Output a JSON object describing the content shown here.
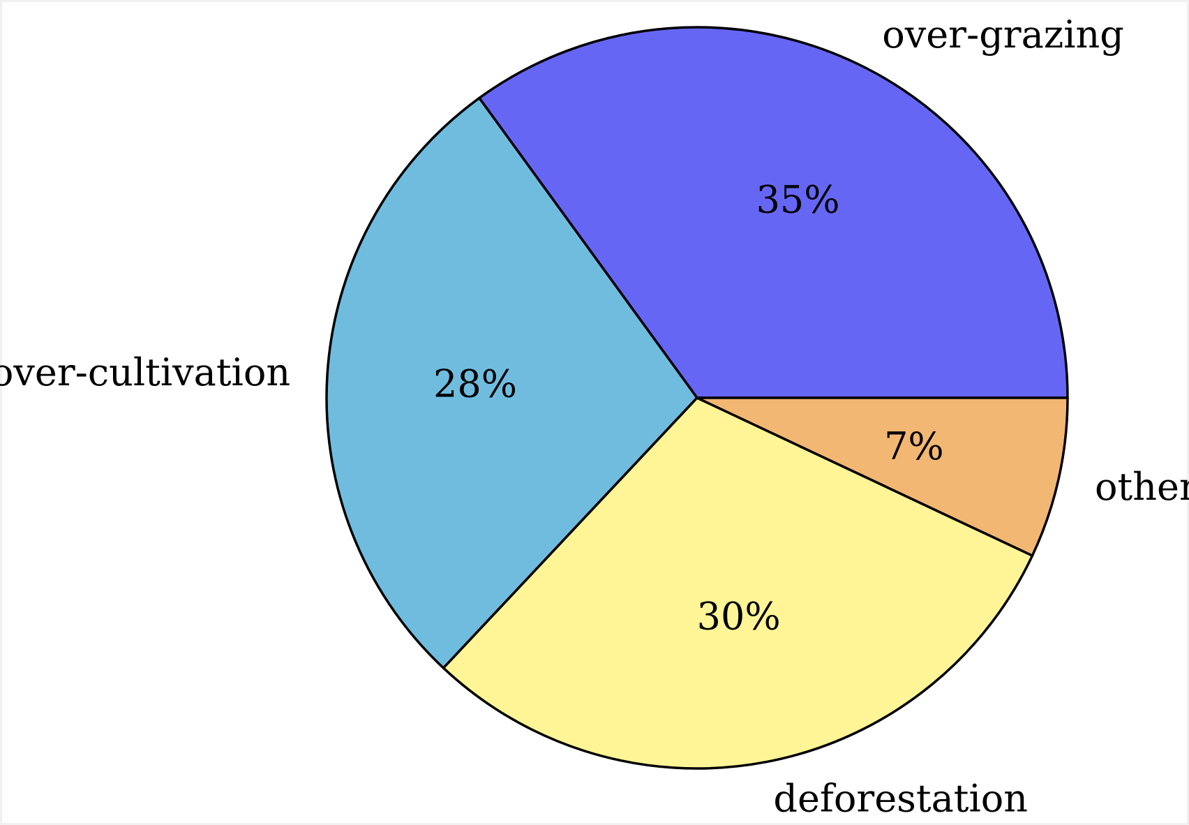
{
  "chart_data": {
    "type": "pie",
    "start_angle_deg": 0,
    "direction": "counterclockwise",
    "slices": [
      {
        "label": "over-grazing",
        "value": 35,
        "value_label": "35%",
        "color": "#6666f5"
      },
      {
        "label": "over-cultivation",
        "value": 28,
        "value_label": "28%",
        "color": "#6fbcdf"
      },
      {
        "label": "deforestation",
        "value": 30,
        "value_label": "30%",
        "color": "#fff596"
      },
      {
        "label": "other",
        "value": 7,
        "value_label": "7%",
        "color": "#f2b773"
      }
    ],
    "outline_color": "#000000"
  }
}
